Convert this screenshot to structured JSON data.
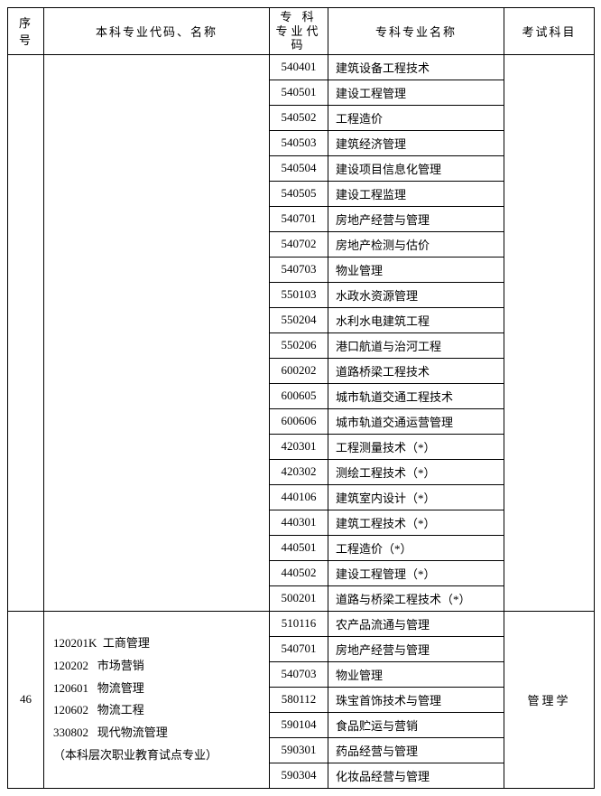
{
  "headers": {
    "col1": "序号",
    "col2": "本科专业代码、名称",
    "col3_l1": "专 科",
    "col3_l2": "专业代码",
    "col4": "专科专业名称",
    "col5": "考试科目"
  },
  "group1_rows": [
    {
      "code": "540401",
      "name": "建筑设备工程技术"
    },
    {
      "code": "540501",
      "name": "建设工程管理"
    },
    {
      "code": "540502",
      "name": "工程造价"
    },
    {
      "code": "540503",
      "name": "建筑经济管理"
    },
    {
      "code": "540504",
      "name": "建设项目信息化管理"
    },
    {
      "code": "540505",
      "name": "建设工程监理"
    },
    {
      "code": "540701",
      "name": "房地产经营与管理"
    },
    {
      "code": "540702",
      "name": "房地产检测与估价"
    },
    {
      "code": "540703",
      "name": "物业管理"
    },
    {
      "code": "550103",
      "name": "水政水资源管理"
    },
    {
      "code": "550204",
      "name": "水利水电建筑工程"
    },
    {
      "code": "550206",
      "name": "港口航道与治河工程"
    },
    {
      "code": "600202",
      "name": "道路桥梁工程技术"
    },
    {
      "code": "600605",
      "name": "城市轨道交通工程技术"
    },
    {
      "code": "600606",
      "name": "城市轨道交通运营管理"
    },
    {
      "code": "420301",
      "name": "工程测量技术（*）"
    },
    {
      "code": "420302",
      "name": "测绘工程技术（*）"
    },
    {
      "code": "440106",
      "name": "建筑室内设计（*）"
    },
    {
      "code": "440301",
      "name": "建筑工程技术（*）"
    },
    {
      "code": "440501",
      "name": "工程造价（*）"
    },
    {
      "code": "440502",
      "name": "建设工程管理（*）"
    },
    {
      "code": "500201",
      "name": "道路与桥梁工程技术（*）"
    }
  ],
  "group2": {
    "seq": "46",
    "major_lines": [
      "120201K  工商管理",
      "120202   市场营销",
      "120601   物流管理",
      "120602   物流工程",
      "330802   现代物流管理",
      "（本科层次职业教育试点专业）"
    ],
    "exam": "管理学",
    "rows": [
      {
        "code": "510116",
        "name": "农产品流通与管理"
      },
      {
        "code": "540701",
        "name": "房地产经营与管理"
      },
      {
        "code": "540703",
        "name": "物业管理"
      },
      {
        "code": "580112",
        "name": "珠宝首饰技术与管理"
      },
      {
        "code": "590104",
        "name": "食品贮运与营销"
      },
      {
        "code": "590301",
        "name": "药品经营与管理"
      },
      {
        "code": "590304",
        "name": "化妆品经营与管理"
      }
    ]
  }
}
